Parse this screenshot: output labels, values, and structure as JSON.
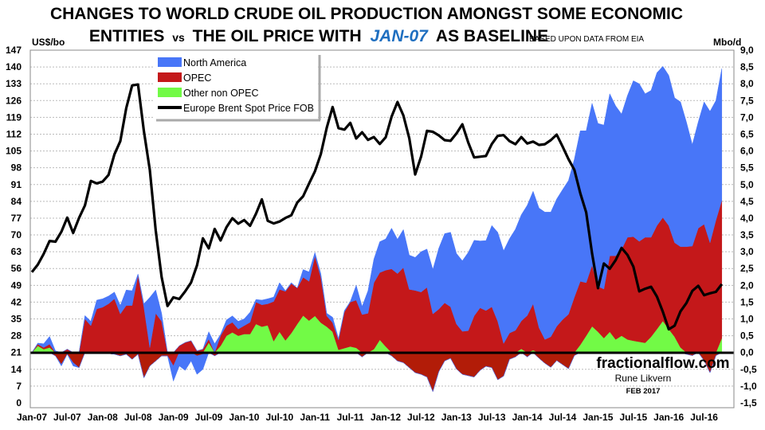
{
  "chart_data": {
    "type": "area",
    "title_line1": "CHANGES TO WORLD CRUDE OIL PRODUCTION AMONGST SOME ECONOMIC",
    "title_line2_a": "ENTITIES",
    "title_line2_vs": "vs",
    "title_line2_b": "THE OIL PRICE WITH",
    "title_line2_highlight": "JAN-07",
    "title_line2_c": "AS BASELINE",
    "subtitle": "BASED UPON DATA FROM EIA",
    "ylabel_left": "US$/bo",
    "ylabel_right": "Mbo/d",
    "x_range": [
      "Jan-07",
      "Oct-16"
    ],
    "x_frequency": "monthly",
    "x_tick_labels": [
      "Jan-07",
      "Jul-07",
      "Jan-08",
      "Jul-08",
      "Jan-09",
      "Jul-09",
      "Jan-10",
      "Jul-10",
      "Jan-11",
      "Jul-11",
      "Jan-12",
      "Jul-12",
      "Jan-13",
      "Jul-13",
      "Jan-14",
      "Jul-14",
      "Jan-15",
      "Jul-15",
      "Jan-16",
      "Jul-16"
    ],
    "ylim_left": [
      0,
      147
    ],
    "y_ticks_left": [
      "0",
      "7",
      "14",
      "21",
      "28",
      "35",
      "42",
      "49",
      "56",
      "63",
      "70",
      "77",
      "84",
      "91",
      "98",
      "105",
      "112",
      "119",
      "126",
      "133",
      "140",
      "147"
    ],
    "ylim_right": [
      -1.5,
      9.0
    ],
    "y_ticks_right": [
      "-1,5",
      "-1,0",
      "-0,5",
      "0,0",
      "0,5",
      "1,0",
      "1,5",
      "2,0",
      "2,5",
      "3,0",
      "3,5",
      "4,0",
      "4,5",
      "5,0",
      "5,5",
      "6,0",
      "6,5",
      "7,0",
      "7,5",
      "8,0",
      "8,5",
      "9,0"
    ],
    "grid": true,
    "legend_position": "top-left",
    "stacked": true,
    "series": [
      {
        "name": "Other non OPEC",
        "axis": "right",
        "color": "#72FA46",
        "negative_color": "#B21C08",
        "values": [
          0,
          0.2,
          0.1,
          0.15,
          -0.1,
          -0.35,
          -0.05,
          -0.3,
          -0.45,
          0,
          0,
          0,
          0,
          -0.03,
          -0.05,
          -0.1,
          -0.05,
          -0.2,
          -0.05,
          -0.75,
          -0.4,
          -0.25,
          -0.1,
          -0.1,
          -0.1,
          0,
          0,
          0,
          -0.1,
          -0.05,
          0.3,
          0,
          0.2,
          0.5,
          0.6,
          0.5,
          0.55,
          0.55,
          0.85,
          0.77,
          0.81,
          0.34,
          0.62,
          0.36,
          0.58,
          0.85,
          1.1,
          0.95,
          1.09,
          0.89,
          0.77,
          0.62,
          0.08,
          0.13,
          0.18,
          0.14,
          -0.13,
          0,
          0.1,
          0.38,
          0.18,
          -0.1,
          -0.25,
          -0.3,
          -0.45,
          -0.6,
          -0.65,
          -0.73,
          -1.16,
          -0.57,
          -0.25,
          -0.17,
          -0.49,
          -0.65,
          -0.69,
          -0.73,
          -0.53,
          -0.41,
          -0.45,
          -0.81,
          -0.7,
          -0.2,
          -0.13,
          0.11,
          -0.13,
          0.07,
          -0.17,
          -0.32,
          -0.44,
          -0.24,
          -0.36,
          -0.48,
          -0.09,
          0.23,
          0.5,
          0.78,
          0.62,
          0.43,
          0.62,
          0.39,
          0.5,
          0.39,
          0.35,
          0.32,
          0.29,
          0.47,
          0.7,
          0.94,
          0.7,
          0.47,
          0.15,
          -0.05,
          -0.09,
          0,
          -0.24,
          -0.6,
          -0.09,
          0.43
        ]
      },
      {
        "name": "OPEC",
        "axis": "right",
        "color": "#C4181A",
        "values": [
          0,
          0.05,
          0.05,
          0.1,
          0,
          0,
          0.1,
          0,
          0,
          1.0,
          0.8,
          1.3,
          1.35,
          1.45,
          1.6,
          1.15,
          1.4,
          1.4,
          2.3,
          1.35,
          0.15,
          1.17,
          0.93,
          0,
          -0.3,
          0.2,
          0.3,
          0.35,
          0.05,
          0.1,
          0.1,
          -0.1,
          0.3,
          0.3,
          0.3,
          0.2,
          0.25,
          0.35,
          0.65,
          0.65,
          0.64,
          1.18,
          1.26,
          1.46,
          1.47,
          1.07,
          1.14,
          1.17,
          1.78,
          1.35,
          0.32,
          0.27,
          0.3,
          1.08,
          1.32,
          1.42,
          1.13,
          1.17,
          1.98,
          2.0,
          2.27,
          2.49,
          2.35,
          2.53,
          1.88,
          1.85,
          1.8,
          1.94,
          1.15,
          1.29,
          1.48,
          1.36,
          0.85,
          0.63,
          0.65,
          1.09,
          1.33,
          1.25,
          1.36,
          0.93,
          0.27,
          0.58,
          0.66,
          0.83,
          1.1,
          1.38,
          0.74,
          0.39,
          0.47,
          0.78,
          0.98,
          1.14,
          1.65,
          1.89,
          1.58,
          1.82,
          1.35,
          1.46,
          2.26,
          2.49,
          2.57,
          3.04,
          3.1,
          2.99,
          3.14,
          2.96,
          3.08,
          3.08,
          3.08,
          2.8,
          3.0,
          3.15,
          3.17,
          3.7,
          3.82,
          3.27,
          3.94,
          4.1
        ]
      },
      {
        "name": "North America",
        "axis": "right",
        "color": "#4876F8",
        "values": [
          0,
          0.03,
          0.11,
          0.23,
          0.05,
          -0.05,
          0,
          -0.1,
          0,
          0.1,
          0.13,
          0.26,
          0.25,
          0.23,
          0.2,
          0.25,
          0.46,
          0.44,
          0.04,
          0.1,
          1.49,
          0.69,
          0.24,
          0,
          -0.45,
          -0.4,
          -0.53,
          -0.25,
          -0.55,
          -0.45,
          0.22,
          0.26,
          0.04,
          0.17,
          0.19,
          0.23,
          0.2,
          0.3,
          0.08,
          0.14,
          0.15,
          0.13,
          0.2,
          0.02,
          0.03,
          0,
          0.23,
          0.28,
          0.11,
          0.11,
          0.08,
          0.16,
          0.04,
          0.04,
          0.02,
          0.44,
          0.24,
          0.67,
          0.7,
          0.92,
          0.93,
          1.21,
          1.02,
          1.13,
          1.02,
          0.98,
          1.2,
          1.14,
          1.32,
          1.81,
          2.06,
          2.22,
          2.1,
          2.1,
          2.33,
          2.25,
          1.99,
          2.08,
          2.42,
          2.65,
          2.76,
          2.81,
          3.01,
          3.16,
          3.28,
          3.35,
          3.56,
          3.79,
          3.71,
          3.79,
          3.87,
          3.98,
          4.11,
          4.48,
          4.52,
          4.82,
          4.85,
          4.88,
          4.82,
          4.46,
          4.03,
          4.22,
          4.64,
          4.69,
          4.27,
          4.37,
          4.55,
          4.5,
          4.47,
          4.31,
          4.31,
          3.71,
          3.02,
          3.16,
          3.64,
          3.91,
          3.56,
          3.92
        ]
      },
      {
        "name": "Europe Brent Spot Price FOB",
        "axis": "left",
        "type": "line",
        "color": "#000000",
        "values": [
          54.5,
          57.6,
          62.1,
          67.5,
          67.2,
          71.3,
          77.2,
          70.8,
          77.1,
          82.3,
          92.5,
          91.5,
          92.2,
          95.0,
          103.6,
          109.1,
          122.8,
          132.3,
          132.7,
          113.2,
          97.1,
          71.9,
          52.5,
          40.4,
          44.0,
          43.3,
          46.5,
          50.2,
          57.3,
          68.6,
          64.4,
          72.5,
          67.7,
          73.2,
          77.0,
          74.7,
          76.2,
          73.8,
          78.8,
          84.8,
          75.9,
          74.8,
          75.6,
          77.1,
          78.2,
          83.5,
          86.1,
          91.4,
          96.5,
          103.7,
          114.6,
          123.3,
          114.5,
          113.9,
          116.7,
          110.2,
          112.8,
          109.6,
          110.8,
          107.9,
          110.7,
          119.3,
          125.4,
          119.8,
          110.3,
          95.2,
          102.6,
          113.4,
          113.0,
          111.5,
          109.5,
          109.2,
          112.3,
          116.1,
          108.5,
          102.3,
          102.6,
          102.9,
          107.9,
          111.3,
          111.6,
          109.1,
          107.8,
          110.8,
          108.1,
          108.9,
          107.5,
          107.8,
          109.5,
          111.8,
          106.8,
          101.6,
          97.1,
          87.4,
          79.4,
          62.3,
          47.8,
          58.1,
          55.9,
          59.5,
          64.6,
          61.7,
          56.8,
          46.5,
          47.6,
          48.4,
          44.3,
          38.0,
          30.7,
          32.2,
          38.2,
          41.6,
          46.7,
          48.8,
          44.9,
          45.7,
          46.3,
          49.5
        ]
      }
    ],
    "baseline_value": 0.0,
    "highlight_color": "#1F6FC0",
    "annotations": {
      "site": "fractionalflow.com",
      "author": "Rune Likvern",
      "date": "FEB 2017"
    }
  }
}
